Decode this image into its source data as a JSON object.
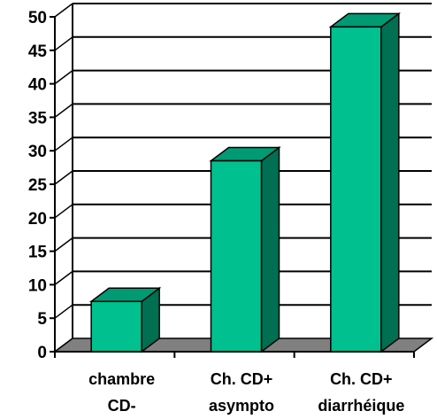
{
  "chart_data": {
    "type": "bar",
    "style": "3d",
    "categories": [
      [
        "chambre",
        "CD-"
      ],
      [
        "Ch. CD+",
        "asympto"
      ],
      [
        "Ch. CD+",
        "diarrhéique"
      ]
    ],
    "values": [
      7.5,
      28.5,
      48.5
    ],
    "ylim": [
      0,
      50
    ],
    "yticks": [
      0,
      5,
      10,
      15,
      20,
      25,
      30,
      35,
      40,
      45,
      50
    ],
    "grid": true,
    "colors": {
      "bar_front": "#00c090",
      "bar_top": "#009a73",
      "bar_side": "#006f52",
      "floor": "#808080",
      "line": "#000000"
    }
  }
}
